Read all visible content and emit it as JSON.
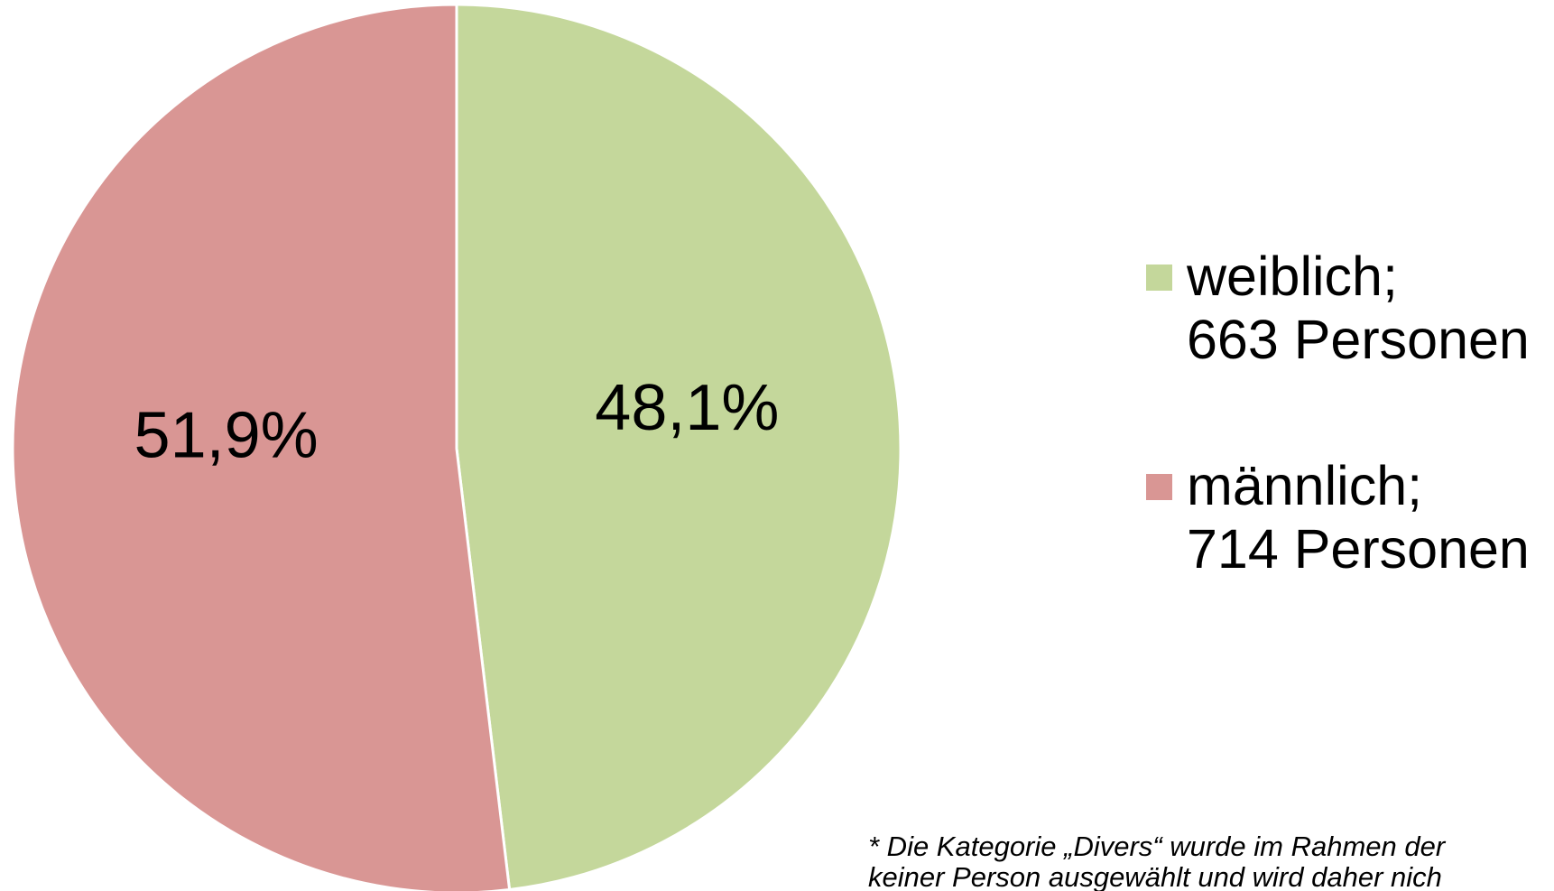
{
  "chart_data": {
    "type": "pie",
    "categories": [
      "weiblich;",
      "männlich;"
    ],
    "legend_counts": [
      "663 Personen",
      "714 Personen"
    ],
    "values": [
      48.1,
      51.9
    ],
    "value_labels": [
      "48,1%",
      "51,9%"
    ],
    "colors": [
      "#c4d79b",
      "#d99694"
    ],
    "legend": "right",
    "footnote": [
      "* Die Kategorie „Divers“ wurde im Rahmen der",
      "keiner Person ausgewählt und wird daher nich"
    ]
  }
}
